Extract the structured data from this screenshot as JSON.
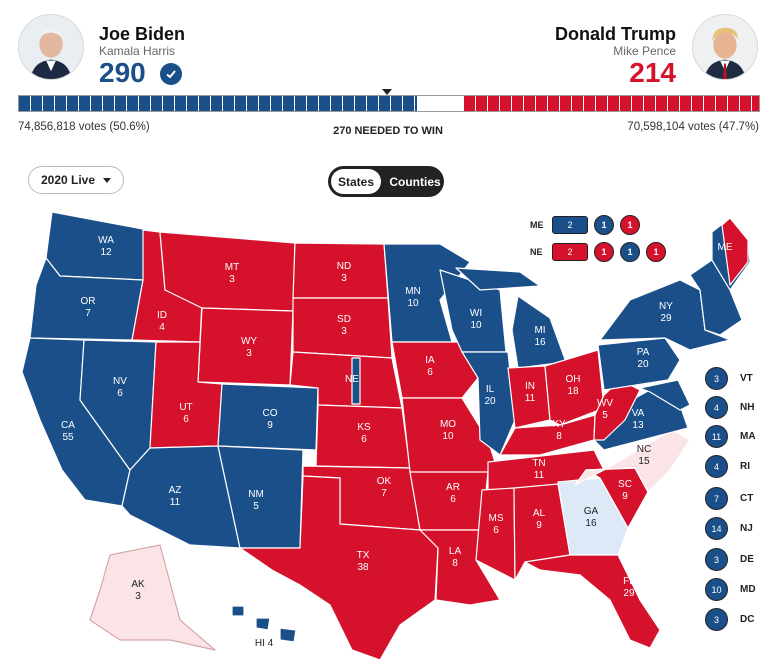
{
  "colors": {
    "dem": "#1b4f8a",
    "rep": "#d5112b",
    "toss_dem": "#dde9f7",
    "toss_rep": "#fbe4e6",
    "undecided": "#ffffff"
  },
  "biden": {
    "name": "Joe Biden",
    "running_mate": "Kamala Harris",
    "electoral_votes": "290",
    "votes_text": "74,856,818 votes (50.6%)",
    "winner_icon": "checkmark-circle-icon"
  },
  "trump": {
    "name": "Donald Trump",
    "running_mate": "Mike Pence",
    "electoral_votes": "214",
    "votes_text": "70,598,104 votes (47.7%)"
  },
  "bar": {
    "needed_text": "270 NEEDED TO WIN",
    "dem_share": 0.538,
    "undecided_share": 0.064,
    "rep_share": 0.398
  },
  "controls": {
    "year_dropdown": "2020 Live",
    "toggle_states": "States",
    "toggle_counties": "Counties"
  },
  "split_states": [
    {
      "label": "ME",
      "total": "2",
      "total_party": "dem",
      "districts": [
        {
          "ev": "1",
          "party": "dem"
        },
        {
          "ev": "1",
          "party": "rep"
        }
      ]
    },
    {
      "label": "NE",
      "total": "2",
      "total_party": "rep",
      "districts": [
        {
          "ev": "1",
          "party": "rep"
        },
        {
          "ev": "1",
          "party": "dem"
        },
        {
          "ev": "1",
          "party": "rep"
        }
      ]
    }
  ],
  "states": [
    {
      "abbr": "WA",
      "ev": "12",
      "party": "dem"
    },
    {
      "abbr": "OR",
      "ev": "7",
      "party": "dem"
    },
    {
      "abbr": "CA",
      "ev": "55",
      "party": "dem"
    },
    {
      "abbr": "NV",
      "ev": "6",
      "party": "dem"
    },
    {
      "abbr": "ID",
      "ev": "4",
      "party": "rep"
    },
    {
      "abbr": "MT",
      "ev": "3",
      "party": "rep"
    },
    {
      "abbr": "WY",
      "ev": "3",
      "party": "rep"
    },
    {
      "abbr": "UT",
      "ev": "6",
      "party": "rep"
    },
    {
      "abbr": "AZ",
      "ev": "11",
      "party": "dem"
    },
    {
      "abbr": "CO",
      "ev": "9",
      "party": "dem"
    },
    {
      "abbr": "NM",
      "ev": "5",
      "party": "dem"
    },
    {
      "abbr": "ND",
      "ev": "3",
      "party": "rep"
    },
    {
      "abbr": "SD",
      "ev": "3",
      "party": "rep"
    },
    {
      "abbr": "NE",
      "ev": "",
      "party": "rep"
    },
    {
      "abbr": "KS",
      "ev": "6",
      "party": "rep"
    },
    {
      "abbr": "OK",
      "ev": "7",
      "party": "rep"
    },
    {
      "abbr": "TX",
      "ev": "38",
      "party": "rep"
    },
    {
      "abbr": "MN",
      "ev": "10",
      "party": "dem"
    },
    {
      "abbr": "IA",
      "ev": "6",
      "party": "rep"
    },
    {
      "abbr": "MO",
      "ev": "10",
      "party": "rep"
    },
    {
      "abbr": "AR",
      "ev": "6",
      "party": "rep"
    },
    {
      "abbr": "LA",
      "ev": "8",
      "party": "rep"
    },
    {
      "abbr": "WI",
      "ev": "10",
      "party": "dem"
    },
    {
      "abbr": "IL",
      "ev": "20",
      "party": "dem"
    },
    {
      "abbr": "MI",
      "ev": "16",
      "party": "dem"
    },
    {
      "abbr": "IN",
      "ev": "11",
      "party": "rep"
    },
    {
      "abbr": "OH",
      "ev": "18",
      "party": "rep"
    },
    {
      "abbr": "KY",
      "ev": "8",
      "party": "rep"
    },
    {
      "abbr": "TN",
      "ev": "11",
      "party": "rep"
    },
    {
      "abbr": "MS",
      "ev": "6",
      "party": "rep"
    },
    {
      "abbr": "AL",
      "ev": "9",
      "party": "rep"
    },
    {
      "abbr": "GA",
      "ev": "16",
      "party": "toss_dem"
    },
    {
      "abbr": "FL",
      "ev": "29",
      "party": "rep"
    },
    {
      "abbr": "SC",
      "ev": "9",
      "party": "rep"
    },
    {
      "abbr": "NC",
      "ev": "15",
      "party": "toss_rep"
    },
    {
      "abbr": "VA",
      "ev": "13",
      "party": "dem"
    },
    {
      "abbr": "WV",
      "ev": "5",
      "party": "rep"
    },
    {
      "abbr": "PA",
      "ev": "20",
      "party": "dem"
    },
    {
      "abbr": "NY",
      "ev": "29",
      "party": "dem"
    },
    {
      "abbr": "ME",
      "ev": "",
      "party": "split"
    },
    {
      "abbr": "AK",
      "ev": "3",
      "party": "toss_rep"
    },
    {
      "abbr": "HI",
      "ev": "4",
      "party": "dem"
    }
  ],
  "northeast_badges": [
    {
      "abbr": "VT",
      "ev": "3"
    },
    {
      "abbr": "NH",
      "ev": "4"
    },
    {
      "abbr": "MA",
      "ev": "11"
    },
    {
      "abbr": "RI",
      "ev": "4"
    },
    {
      "abbr": "CT",
      "ev": "7"
    },
    {
      "abbr": "NJ",
      "ev": "14"
    },
    {
      "abbr": "DE",
      "ev": "3"
    },
    {
      "abbr": "MD",
      "ev": "10"
    },
    {
      "abbr": "DC",
      "ev": "3"
    }
  ]
}
